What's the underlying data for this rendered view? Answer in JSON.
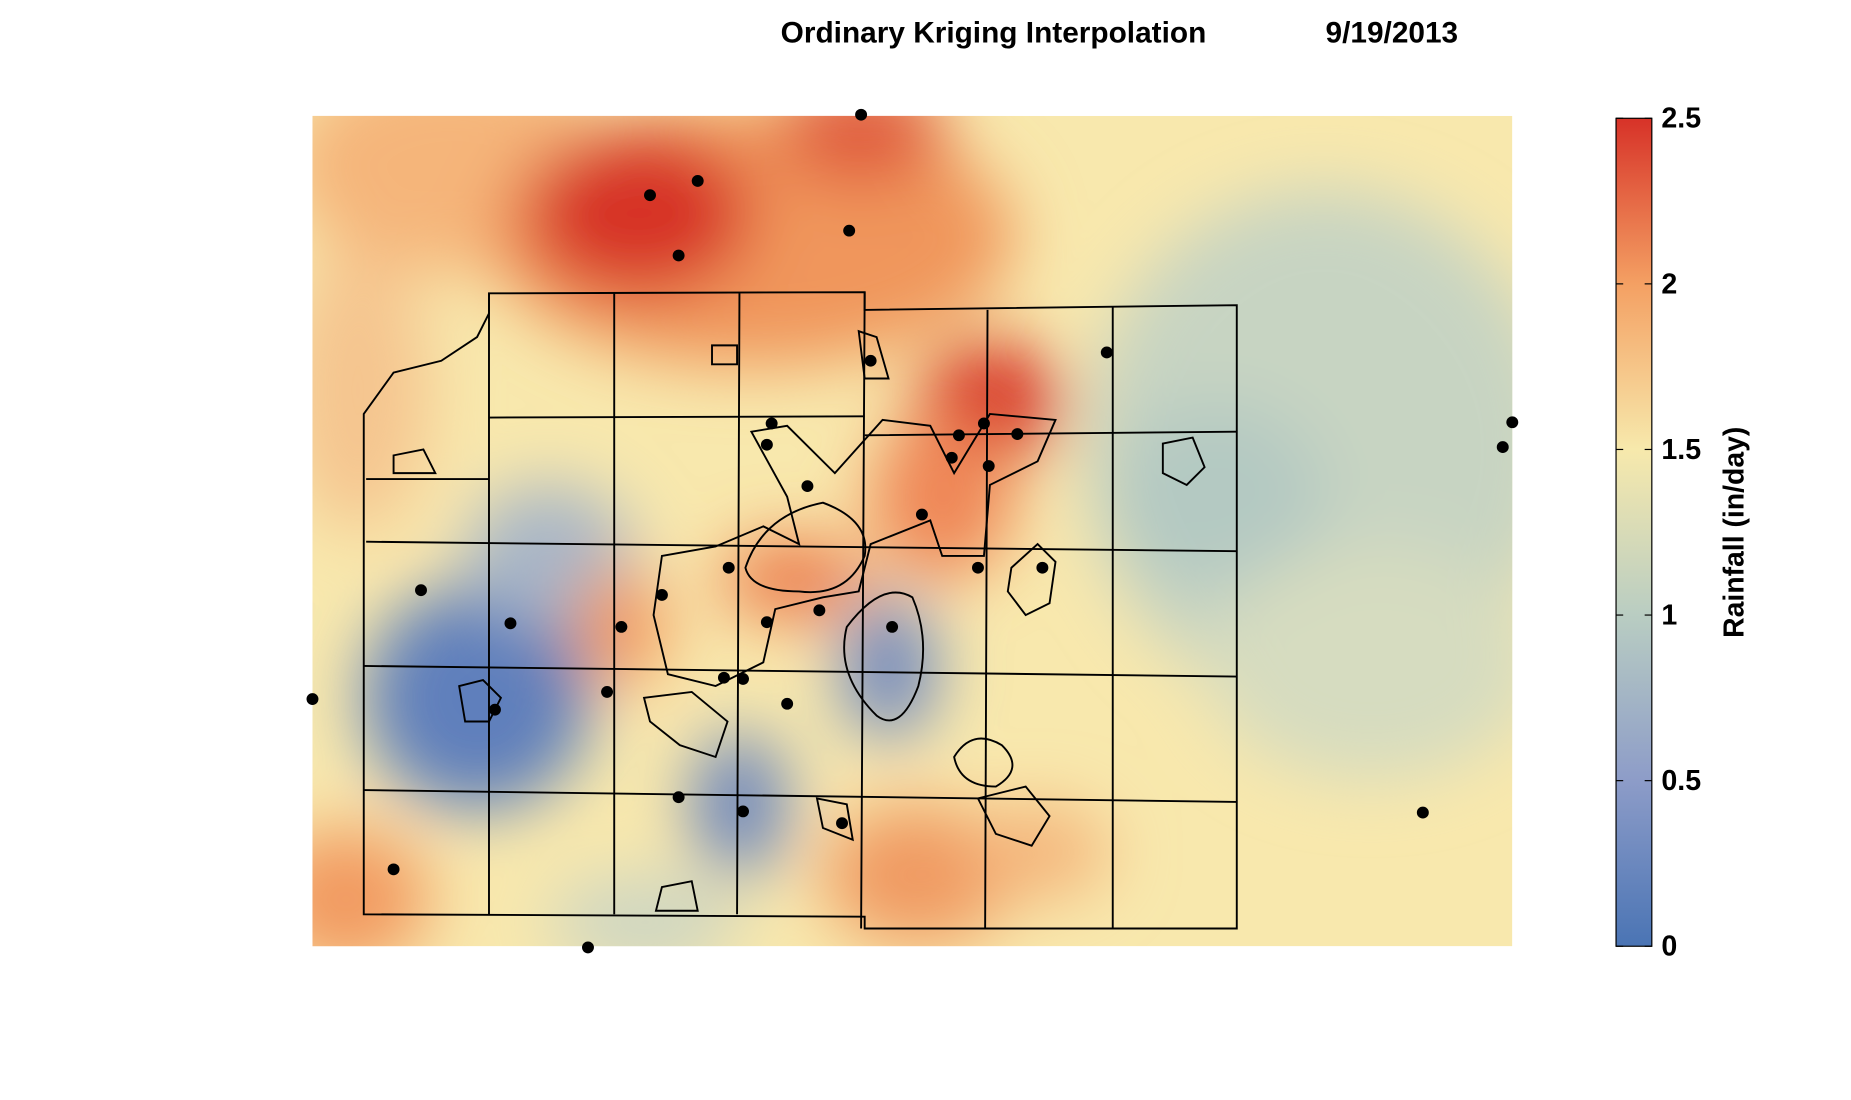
{
  "title": "Ordinary Kriging Interpolation",
  "date": "9/19/2013",
  "colorbar": {
    "label": "Rainfall (in/day)",
    "lim": [
      0,
      2.5
    ],
    "ticks": [
      0,
      0.5,
      1,
      1.5,
      2,
      2.5
    ],
    "colors": [
      "#4a74b4",
      "#8d9cc8",
      "#b9cdc2",
      "#f7e9ac",
      "#f4a063",
      "#d73228"
    ]
  }
}
